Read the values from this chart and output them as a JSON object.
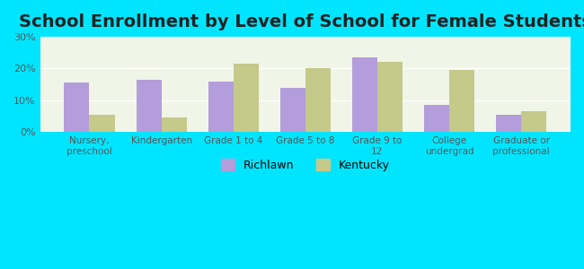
{
  "title": "School Enrollment by Level of School for Female Students",
  "categories": [
    "Nursery,\npreschool",
    "Kindergarten",
    "Grade 1 to 4",
    "Grade 5 to 8",
    "Grade 9 to\n12",
    "College\nundergrad",
    "Graduate or\nprofessional"
  ],
  "richlawn": [
    15.5,
    16.5,
    16.0,
    14.0,
    23.5,
    8.5,
    5.5
  ],
  "kentucky": [
    5.5,
    4.5,
    21.5,
    20.0,
    22.0,
    19.5,
    6.5
  ],
  "richlawn_color": "#b39ddb",
  "kentucky_color": "#c5c98a",
  "background_outer": "#00e5ff",
  "background_inner": "#f0f5e8",
  "ylim": [
    0,
    30
  ],
  "yticks": [
    0,
    10,
    20,
    30
  ],
  "ytick_labels": [
    "0%",
    "10%",
    "20%",
    "30%"
  ],
  "legend_richlawn": "Richlawn",
  "legend_kentucky": "Kentucky",
  "bar_width": 0.35,
  "title_fontsize": 14
}
